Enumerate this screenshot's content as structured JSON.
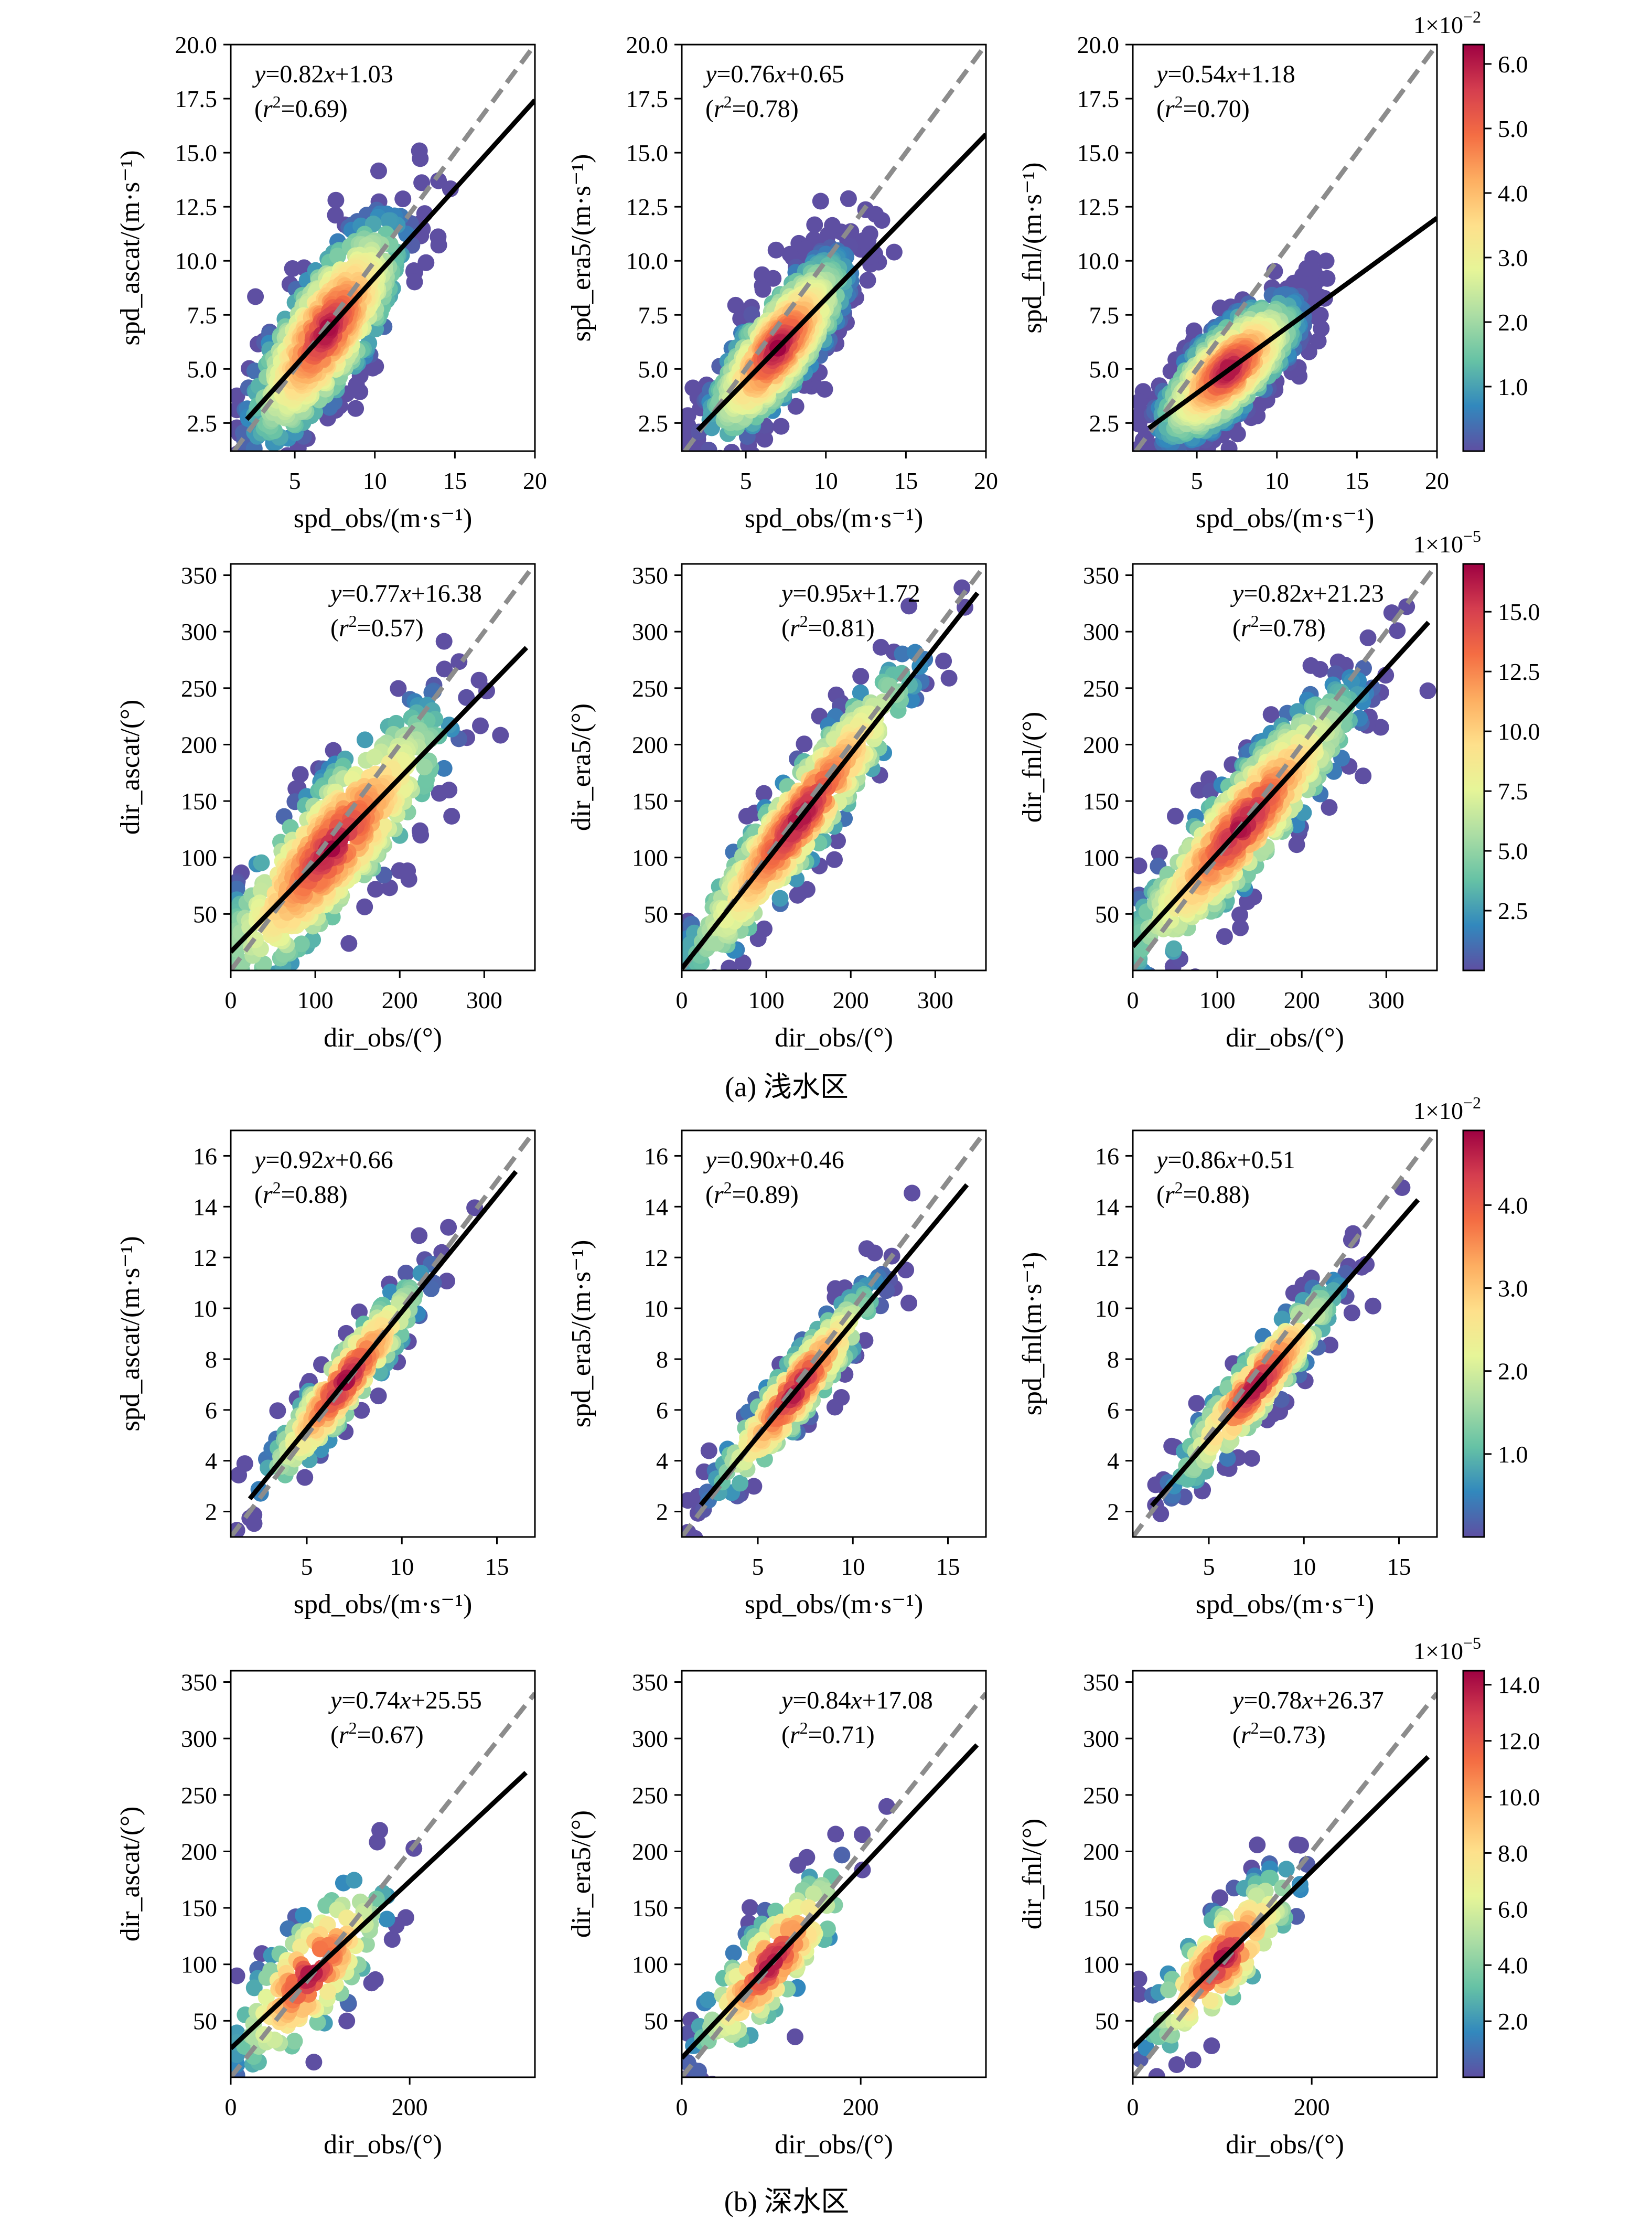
{
  "captions": {
    "a": "(a) 浅水区",
    "b": "(b) 深水区"
  },
  "colormap": [
    "#5e4fa2",
    "#3288bd",
    "#66c2a5",
    "#abdda4",
    "#e6f598",
    "#fee08b",
    "#fdae61",
    "#f46d43",
    "#d53e4f",
    "#9e0142"
  ],
  "fit_line_color": "#000000",
  "identity_line_color": "#8c8c8c",
  "chart_data": [
    {
      "id": "a-spd-ascat",
      "type": "scatter",
      "section": "a",
      "row": 0,
      "col": 0,
      "xlabel": "spd_obs/(m·s⁻¹)",
      "ylabel": "spd_ascat/(m·s⁻¹)",
      "xlim": [
        1,
        20
      ],
      "ylim": [
        1.2,
        20
      ],
      "xticks": [
        "5",
        "10",
        "15",
        "20"
      ],
      "xtick_values": [
        5,
        10,
        15,
        20
      ],
      "yticks": [
        "2.5",
        "5.0",
        "7.5",
        "10.0",
        "12.5",
        "15.0",
        "17.5",
        "20.0"
      ],
      "ytick_values": [
        2.5,
        5.0,
        7.5,
        10.0,
        12.5,
        15.0,
        17.5,
        20.0
      ],
      "fit": {
        "slope": 0.82,
        "intercept": 1.03,
        "x_range": [
          2,
          20
        ]
      },
      "equation_prefix": "=0.82",
      "equation_suffix": "+1.03",
      "r2_value": "=0.69)",
      "eq_pos": "top-left",
      "cloud": {
        "n": 650,
        "center": [
          7,
          6.8
        ],
        "spread": [
          2.5,
          1.8
        ],
        "dmax": 2.2,
        "seed": 11
      }
    },
    {
      "id": "a-spd-era5",
      "type": "scatter",
      "section": "a",
      "row": 0,
      "col": 1,
      "xlabel": "spd_obs/(m·s⁻¹)",
      "ylabel": "spd_era5/(m·s⁻¹)",
      "xlim": [
        1,
        20
      ],
      "ylim": [
        1.2,
        20
      ],
      "xticks": [
        "5",
        "10",
        "15",
        "20"
      ],
      "xtick_values": [
        5,
        10,
        15,
        20
      ],
      "yticks": [
        "2.5",
        "5.0",
        "7.5",
        "10.0",
        "12.5",
        "15.0",
        "17.5",
        "20.0"
      ],
      "ytick_values": [
        2.5,
        5.0,
        7.5,
        10.0,
        12.5,
        15.0,
        17.5,
        20.0
      ],
      "fit": {
        "slope": 0.76,
        "intercept": 0.65,
        "x_range": [
          2,
          20
        ]
      },
      "equation_prefix": "=0.76",
      "equation_suffix": "+0.65",
      "r2_value": "=0.78)",
      "eq_pos": "top-left",
      "cloud": {
        "n": 650,
        "center": [
          7,
          6.0
        ],
        "spread": [
          2.5,
          1.5
        ],
        "dmax": 2.0,
        "seed": 23
      }
    },
    {
      "id": "a-spd-fnl",
      "type": "scatter",
      "section": "a",
      "row": 0,
      "col": 2,
      "xlabel": "spd_obs/(m·s⁻¹)",
      "ylabel": "spd_fnl/(m·s⁻¹)",
      "xlim": [
        1,
        20
      ],
      "ylim": [
        1.2,
        20
      ],
      "xticks": [
        "5",
        "10",
        "15",
        "20"
      ],
      "xtick_values": [
        5,
        10,
        15,
        20
      ],
      "yticks": [
        "2.5",
        "5.0",
        "7.5",
        "10.0",
        "12.5",
        "15.0",
        "17.5",
        "20.0"
      ],
      "ytick_values": [
        2.5,
        5.0,
        7.5,
        10.0,
        12.5,
        15.0,
        17.5,
        20.0
      ],
      "fit": {
        "slope": 0.54,
        "intercept": 1.18,
        "x_range": [
          2,
          20
        ]
      },
      "equation_prefix": "=0.54",
      "equation_suffix": "+1.18",
      "r2_value": "=0.70)",
      "eq_pos": "top-left",
      "cloud": {
        "n": 650,
        "center": [
          7,
          5.0
        ],
        "spread": [
          2.5,
          1.3
        ],
        "dmax": 2.0,
        "seed": 37
      },
      "colorbar": {
        "exp": "−2",
        "ticks": [
          "1.0",
          "2.0",
          "3.0",
          "4.0",
          "5.0",
          "6.0"
        ],
        "tick_values": [
          1,
          2,
          3,
          4,
          5,
          6
        ],
        "range": [
          0,
          6.3
        ]
      }
    },
    {
      "id": "a-dir-ascat",
      "type": "scatter",
      "section": "a",
      "row": 1,
      "col": 0,
      "xlabel": "dir_obs/(°)",
      "ylabel": "dir_ascat/(°)",
      "xlim": [
        0,
        360
      ],
      "ylim": [
        0,
        360
      ],
      "xticks": [
        "0",
        "100",
        "200",
        "300"
      ],
      "xtick_values": [
        0,
        100,
        200,
        300
      ],
      "yticks": [
        "50",
        "100",
        "150",
        "200",
        "250",
        "300",
        "350"
      ],
      "ytick_values": [
        50,
        100,
        150,
        200,
        250,
        300,
        350
      ],
      "fit": {
        "slope": 0.77,
        "intercept": 16.38,
        "x_range": [
          0,
          350
        ]
      },
      "equation_prefix": "=0.77",
      "equation_suffix": "+16.38",
      "r2_value": "=0.57)",
      "eq_pos": "top-center",
      "cloud": {
        "n": 550,
        "center": [
          120,
          110
        ],
        "spread": [
          70,
          35
        ],
        "dmax": 2.3,
        "seed": 41
      }
    },
    {
      "id": "a-dir-era5",
      "type": "scatter",
      "section": "a",
      "row": 1,
      "col": 1,
      "xlabel": "dir_obs/(°)",
      "ylabel": "dir_era5/(°)",
      "xlim": [
        0,
        360
      ],
      "ylim": [
        0,
        360
      ],
      "xticks": [
        "0",
        "100",
        "200",
        "300"
      ],
      "xtick_values": [
        0,
        100,
        200,
        300
      ],
      "yticks": [
        "50",
        "100",
        "150",
        "200",
        "250",
        "300",
        "350"
      ],
      "ytick_values": [
        50,
        100,
        150,
        200,
        250,
        300,
        350
      ],
      "fit": {
        "slope": 0.95,
        "intercept": 1.72,
        "x_range": [
          0,
          350
        ]
      },
      "equation_prefix": "=0.95",
      "equation_suffix": "+1.72",
      "r2_value": "=0.81)",
      "eq_pos": "top-center",
      "cloud": {
        "n": 550,
        "center": [
          140,
          135
        ],
        "spread": [
          70,
          25
        ],
        "dmax": 2.3,
        "seed": 53
      }
    },
    {
      "id": "a-dir-fnl",
      "type": "scatter",
      "section": "a",
      "row": 1,
      "col": 2,
      "xlabel": "dir_obs/(°)",
      "ylabel": "dir_fnl/(°)",
      "xlim": [
        0,
        360
      ],
      "ylim": [
        0,
        360
      ],
      "xticks": [
        "0",
        "100",
        "200",
        "300"
      ],
      "xtick_values": [
        0,
        100,
        200,
        300
      ],
      "yticks": [
        "50",
        "100",
        "150",
        "200",
        "250",
        "300",
        "350"
      ],
      "ytick_values": [
        50,
        100,
        150,
        200,
        250,
        300,
        350
      ],
      "fit": {
        "slope": 0.82,
        "intercept": 21.23,
        "x_range": [
          0,
          350
        ]
      },
      "equation_prefix": "=0.82",
      "equation_suffix": "+21.23",
      "r2_value": "=0.78)",
      "eq_pos": "top-center",
      "cloud": {
        "n": 550,
        "center": [
          130,
          130
        ],
        "spread": [
          70,
          28
        ],
        "dmax": 2.3,
        "seed": 67
      },
      "colorbar": {
        "exp": "−5",
        "ticks": [
          "2.5",
          "5.0",
          "7.5",
          "10.0",
          "12.5",
          "15.0"
        ],
        "tick_values": [
          2.5,
          5,
          7.5,
          10,
          12.5,
          15
        ],
        "range": [
          0,
          17
        ]
      }
    },
    {
      "id": "b-spd-ascat",
      "type": "scatter",
      "section": "b",
      "row": 2,
      "col": 0,
      "xlabel": "spd_obs/(m·s⁻¹)",
      "ylabel": "spd_ascat/(m·s⁻¹)",
      "xlim": [
        1,
        17
      ],
      "ylim": [
        1,
        17
      ],
      "xticks": [
        "5",
        "10",
        "15"
      ],
      "xtick_values": [
        5,
        10,
        15
      ],
      "yticks": [
        "2",
        "4",
        "6",
        "8",
        "10",
        "12",
        "14",
        "16"
      ],
      "ytick_values": [
        2,
        4,
        6,
        8,
        10,
        12,
        14,
        16
      ],
      "fit": {
        "slope": 0.92,
        "intercept": 0.66,
        "x_range": [
          2,
          16
        ]
      },
      "equation_prefix": "=0.92",
      "equation_suffix": "+0.66",
      "r2_value": "=0.88)",
      "eq_pos": "top-left",
      "cloud": {
        "n": 280,
        "center": [
          7,
          7.1
        ],
        "spread": [
          2.5,
          0.9
        ],
        "dmax": 2.0,
        "seed": 71
      }
    },
    {
      "id": "b-spd-era5",
      "type": "scatter",
      "section": "b",
      "row": 2,
      "col": 1,
      "xlabel": "spd_obs/(m·s⁻¹)",
      "ylabel": "spd_era5/(m·s⁻¹)",
      "xlim": [
        1,
        17
      ],
      "ylim": [
        1,
        17
      ],
      "xticks": [
        "5",
        "10",
        "15"
      ],
      "xtick_values": [
        5,
        10,
        15
      ],
      "yticks": [
        "2",
        "4",
        "6",
        "8",
        "10",
        "12",
        "14",
        "16"
      ],
      "ytick_values": [
        2,
        4,
        6,
        8,
        10,
        12,
        14,
        16
      ],
      "fit": {
        "slope": 0.9,
        "intercept": 0.46,
        "x_range": [
          2,
          16
        ]
      },
      "equation_prefix": "=0.90",
      "equation_suffix": "+0.46",
      "r2_value": "=0.89)",
      "eq_pos": "top-left",
      "cloud": {
        "n": 280,
        "center": [
          7,
          6.8
        ],
        "spread": [
          2.5,
          0.9
        ],
        "dmax": 2.0,
        "seed": 83
      }
    },
    {
      "id": "b-spd-fnl",
      "type": "scatter",
      "section": "b",
      "row": 2,
      "col": 2,
      "xlabel": "spd_obs/(m·s⁻¹)",
      "ylabel": "spd_fnl(m·s⁻¹)",
      "xlim": [
        1,
        17
      ],
      "ylim": [
        1,
        17
      ],
      "xticks": [
        "5",
        "10",
        "15"
      ],
      "xtick_values": [
        5,
        10,
        15
      ],
      "yticks": [
        "2",
        "4",
        "6",
        "8",
        "10",
        "12",
        "14",
        "16"
      ],
      "ytick_values": [
        2,
        4,
        6,
        8,
        10,
        12,
        14,
        16
      ],
      "fit": {
        "slope": 0.86,
        "intercept": 0.51,
        "x_range": [
          2,
          16
        ]
      },
      "equation_prefix": "=0.86",
      "equation_suffix": "+0.51",
      "r2_value": "=0.88)",
      "eq_pos": "top-left",
      "cloud": {
        "n": 280,
        "center": [
          7.5,
          7.0
        ],
        "spread": [
          2.5,
          0.9
        ],
        "dmax": 2.0,
        "seed": 97
      },
      "colorbar": {
        "exp": "−2",
        "ticks": [
          "1.0",
          "2.0",
          "3.0",
          "4.0"
        ],
        "tick_values": [
          1,
          2,
          3,
          4
        ],
        "range": [
          0,
          4.9
        ]
      }
    },
    {
      "id": "b-dir-ascat",
      "type": "scatter",
      "section": "b",
      "row": 3,
      "col": 0,
      "xlabel": "dir_obs/(°)",
      "ylabel": "dir_ascat/(°)",
      "xlim": [
        0,
        340
      ],
      "ylim": [
        0,
        360
      ],
      "xticks": [
        "0",
        "200"
      ],
      "xtick_values": [
        0,
        200
      ],
      "yticks": [
        "50",
        "100",
        "150",
        "200",
        "250",
        "300",
        "350"
      ],
      "ytick_values": [
        50,
        100,
        150,
        200,
        250,
        300,
        350
      ],
      "fit": {
        "slope": 0.74,
        "intercept": 25.55,
        "x_range": [
          0,
          330
        ]
      },
      "equation_prefix": "=0.74",
      "equation_suffix": "+25.55",
      "r2_value": "=0.67)",
      "eq_pos": "top-center",
      "cloud": {
        "n": 170,
        "center": [
          90,
          90
        ],
        "spread": [
          45,
          30
        ],
        "dmax": 2.2,
        "seed": 101
      }
    },
    {
      "id": "b-dir-era5",
      "type": "scatter",
      "section": "b",
      "row": 3,
      "col": 1,
      "xlabel": "dir_obs/(°)",
      "ylabel": "dir_era5/(°)",
      "xlim": [
        0,
        340
      ],
      "ylim": [
        0,
        360
      ],
      "xticks": [
        "0",
        "200"
      ],
      "xtick_values": [
        0,
        200
      ],
      "yticks": [
        "50",
        "100",
        "150",
        "200",
        "250",
        "300",
        "350"
      ],
      "ytick_values": [
        50,
        100,
        150,
        200,
        250,
        300,
        350
      ],
      "fit": {
        "slope": 0.84,
        "intercept": 17.08,
        "x_range": [
          0,
          330
        ]
      },
      "equation_prefix": "=0.84",
      "equation_suffix": "+17.08",
      "r2_value": "=0.71)",
      "eq_pos": "top-center",
      "cloud": {
        "n": 170,
        "center": [
          100,
          100
        ],
        "spread": [
          45,
          25
        ],
        "dmax": 2.2,
        "seed": 113
      }
    },
    {
      "id": "b-dir-fnl",
      "type": "scatter",
      "section": "b",
      "row": 3,
      "col": 2,
      "xlabel": "dir_obs/(°)",
      "ylabel": "dir_fnl/(°)",
      "xlim": [
        0,
        340
      ],
      "ylim": [
        0,
        360
      ],
      "xticks": [
        "0",
        "200"
      ],
      "xtick_values": [
        0,
        200
      ],
      "yticks": [
        "50",
        "100",
        "150",
        "200",
        "250",
        "300",
        "350"
      ],
      "ytick_values": [
        50,
        100,
        150,
        200,
        250,
        300,
        350
      ],
      "fit": {
        "slope": 0.78,
        "intercept": 26.37,
        "x_range": [
          0,
          330
        ]
      },
      "equation_prefix": "=0.78",
      "equation_suffix": "+26.37",
      "r2_value": "=0.73)",
      "eq_pos": "top-center",
      "cloud": {
        "n": 170,
        "center": [
          100,
          105
        ],
        "spread": [
          45,
          25
        ],
        "dmax": 2.2,
        "seed": 127
      },
      "colorbar": {
        "exp": "−5",
        "ticks": [
          "2.0",
          "4.0",
          "6.0",
          "8.0",
          "10.0",
          "12.0",
          "14.0"
        ],
        "tick_values": [
          2,
          4,
          6,
          8,
          10,
          12,
          14
        ],
        "range": [
          0,
          14.5
        ]
      }
    }
  ]
}
